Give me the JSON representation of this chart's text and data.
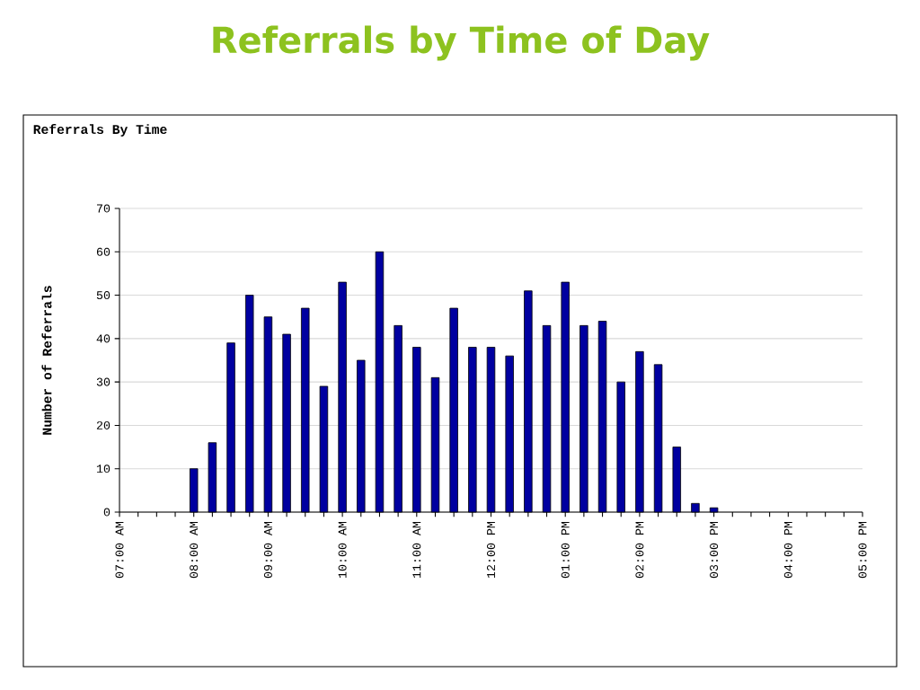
{
  "chart_data": {
    "type": "bar",
    "title": "Referrals by Time of Day",
    "subtitle": "Referrals By Time",
    "ylabel": "Number of Referrals",
    "x": [
      8,
      8.25,
      8.5,
      8.75,
      9,
      9.25,
      9.5,
      9.75,
      10,
      10.25,
      10.5,
      10.75,
      11,
      11.25,
      11.5,
      11.75,
      12,
      12.25,
      12.5,
      12.75,
      13,
      13.25,
      13.5,
      13.75,
      14,
      14.25,
      14.5,
      14.75,
      15
    ],
    "values": [
      10,
      16,
      39,
      50,
      45,
      41,
      47,
      29,
      53,
      35,
      60,
      43,
      38,
      31,
      47,
      38,
      38,
      36,
      51,
      43,
      53,
      43,
      44,
      30,
      37,
      34,
      15,
      2,
      1
    ],
    "color": "#0000a0",
    "xlim": [
      7,
      17
    ],
    "xticks": [
      {
        "value": 7,
        "label": "07:00 AM"
      },
      {
        "value": 7.25,
        "label": null
      },
      {
        "value": 7.5,
        "label": null
      },
      {
        "value": 7.75,
        "label": null
      },
      {
        "value": 8,
        "label": "08:00 AM"
      },
      {
        "value": 8.25,
        "label": null
      },
      {
        "value": 8.5,
        "label": null
      },
      {
        "value": 8.75,
        "label": null
      },
      {
        "value": 9,
        "label": "09:00 AM"
      },
      {
        "value": 9.25,
        "label": null
      },
      {
        "value": 9.5,
        "label": null
      },
      {
        "value": 9.75,
        "label": null
      },
      {
        "value": 10,
        "label": "10:00 AM"
      },
      {
        "value": 10.25,
        "label": null
      },
      {
        "value": 10.5,
        "label": null
      },
      {
        "value": 10.75,
        "label": null
      },
      {
        "value": 11,
        "label": "11:00 AM"
      },
      {
        "value": 11.25,
        "label": null
      },
      {
        "value": 11.5,
        "label": null
      },
      {
        "value": 11.75,
        "label": null
      },
      {
        "value": 12,
        "label": "12:00 PM"
      },
      {
        "value": 12.25,
        "label": null
      },
      {
        "value": 12.5,
        "label": null
      },
      {
        "value": 12.75,
        "label": null
      },
      {
        "value": 13,
        "label": "01:00 PM"
      },
      {
        "value": 13.25,
        "label": null
      },
      {
        "value": 13.5,
        "label": null
      },
      {
        "value": 13.75,
        "label": null
      },
      {
        "value": 14,
        "label": "02:00 PM"
      },
      {
        "value": 14.25,
        "label": null
      },
      {
        "value": 14.5,
        "label": null
      },
      {
        "value": 14.75,
        "label": null
      },
      {
        "value": 15,
        "label": "03:00 PM"
      },
      {
        "value": 15.25,
        "label": null
      },
      {
        "value": 15.5,
        "label": null
      },
      {
        "value": 15.75,
        "label": null
      },
      {
        "value": 16,
        "label": "04:00 PM"
      },
      {
        "value": 16.25,
        "label": null
      },
      {
        "value": 16.5,
        "label": null
      },
      {
        "value": 16.75,
        "label": null
      },
      {
        "value": 17,
        "label": "05:00 PM"
      }
    ],
    "ylim": [
      0,
      70
    ],
    "yticks": [
      0,
      10,
      20,
      30,
      40,
      50,
      60,
      70
    ],
    "grid": "y"
  }
}
